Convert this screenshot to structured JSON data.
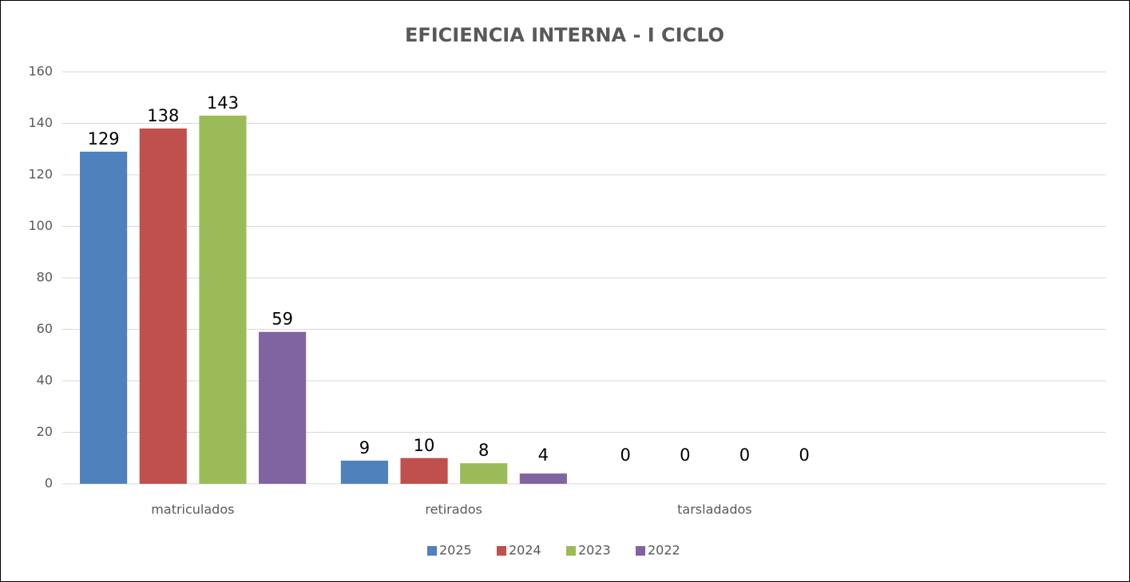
{
  "chart_data": {
    "type": "bar",
    "title": "EFICIENCIA INTERNA - I CICLO",
    "categories": [
      "matriculados",
      "retirados",
      "tarsladados",
      null
    ],
    "series": [
      {
        "name": "2025",
        "color": "#4f81bd",
        "values": [
          129,
          9,
          0,
          null
        ]
      },
      {
        "name": "2024",
        "color": "#c0504d",
        "values": [
          138,
          10,
          0,
          null
        ]
      },
      {
        "name": "2023",
        "color": "#9bbb59",
        "values": [
          143,
          8,
          0,
          null
        ]
      },
      {
        "name": "2022",
        "color": "#8064a2",
        "values": [
          59,
          4,
          0,
          null
        ]
      }
    ],
    "ylim": [
      0,
      160
    ],
    "yticks": [
      0,
      20,
      40,
      60,
      80,
      100,
      120,
      140,
      160
    ],
    "grid": true,
    "legend": "bottom"
  }
}
